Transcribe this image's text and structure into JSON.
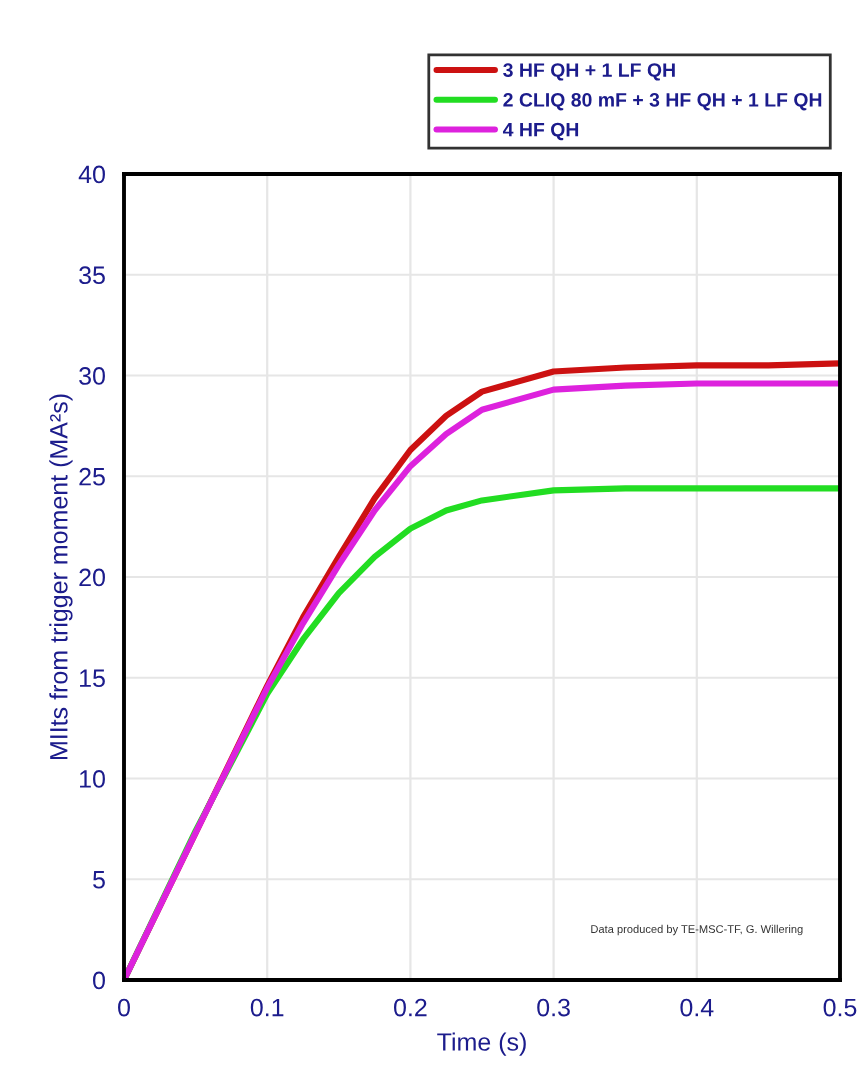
{
  "chart_data": {
    "type": "line",
    "xlabel": "Time (s)",
    "ylabel": "MIIts from trigger moment (MA²s)",
    "x": [
      0,
      0.05,
      0.1,
      0.125,
      0.15,
      0.175,
      0.2,
      0.225,
      0.25,
      0.3,
      0.35,
      0.4,
      0.45,
      0.5
    ],
    "series": [
      {
        "name": "3 HF QH + 1 LF QH",
        "color": "#cc1111",
        "values": [
          0,
          7.3,
          14.6,
          18,
          21,
          23.9,
          26.3,
          28,
          29.2,
          30.2,
          30.4,
          30.5,
          30.5,
          30.6
        ]
      },
      {
        "name": "2 CLIQ 80 mF + 3 HF QH + 1 LF QH",
        "color": "#22dd22",
        "values": [
          0,
          7.4,
          14.2,
          16.9,
          19.2,
          21,
          22.4,
          23.3,
          23.8,
          24.3,
          24.4,
          24.4,
          24.4,
          24.4
        ]
      },
      {
        "name": "4 HF QH",
        "color": "#dd22dd",
        "values": [
          0,
          7.3,
          14.5,
          17.7,
          20.6,
          23.3,
          25.5,
          27.1,
          28.3,
          29.3,
          29.5,
          29.6,
          29.6,
          29.6
        ]
      }
    ],
    "xlim": [
      0,
      0.5
    ],
    "xticks": [
      0,
      0.1,
      0.2,
      0.3,
      0.4,
      0.5
    ],
    "ylim": [
      0,
      40
    ],
    "yticks": [
      0,
      5,
      10,
      15,
      20,
      25,
      30,
      35,
      40
    ],
    "grid": true,
    "legend": "top right",
    "marker": "none",
    "line_style": "solid",
    "annotations": [
      "Data produced by TE-MSC-TF, G. Willering"
    ]
  }
}
